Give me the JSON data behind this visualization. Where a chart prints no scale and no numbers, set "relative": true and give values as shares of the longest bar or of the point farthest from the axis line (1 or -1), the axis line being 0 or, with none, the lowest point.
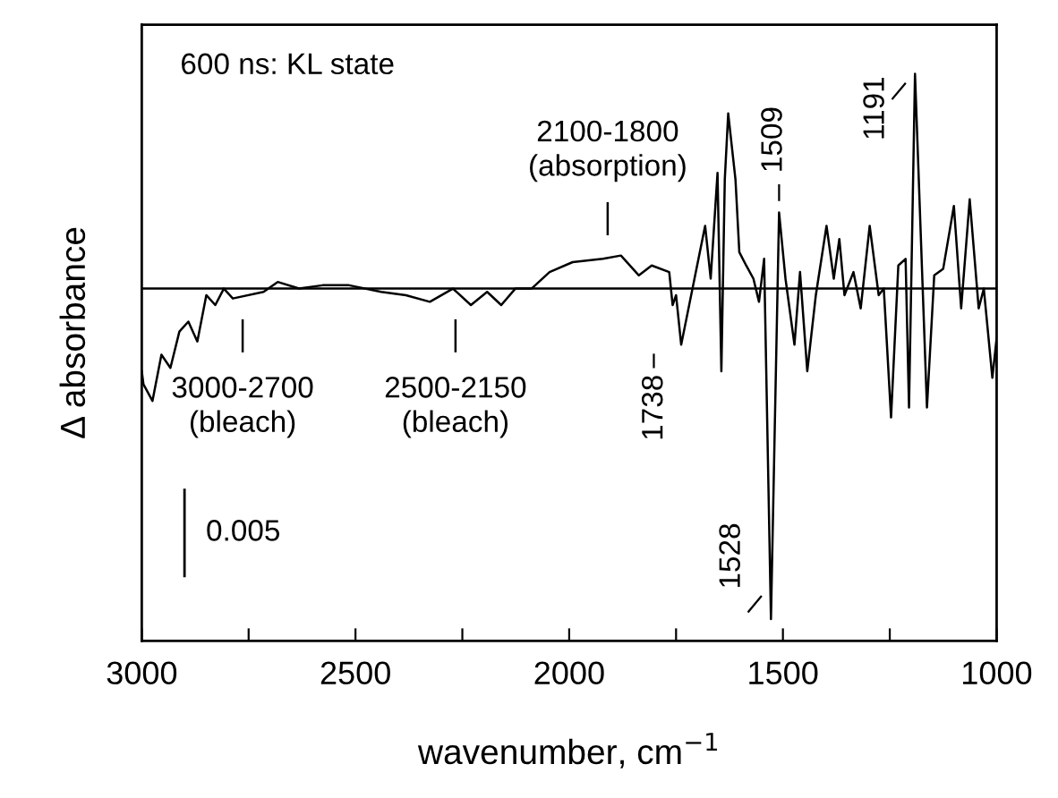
{
  "chart_data": {
    "type": "line",
    "relative": true,
    "xlabel": "wavenumber, cm$^{−1}$",
    "ylabel": "Δ absorbance",
    "xlim": [
      3000,
      1000
    ],
    "xticks": [
      3000,
      {
        "value": 2750,
        "label": null
      },
      2500,
      {
        "value": 2250,
        "label": null
      },
      2000,
      {
        "value": 1750,
        "label": null
      },
      1500,
      {
        "value": 1250,
        "label": null
      },
      1000
    ],
    "ref_lines": [
      {
        "axis": "y",
        "value": 0,
        "color": "#000000"
      }
    ],
    "series": [
      {
        "color": "#000000",
        "x": [
          3000,
          2996,
          2975,
          2954,
          2933,
          2912,
          2891,
          2870,
          2849,
          2828,
          2808,
          2787,
          2715,
          2682,
          2632,
          2577,
          2515,
          2440,
          2382,
          2326,
          2272,
          2230,
          2192,
          2159,
          2126,
          2088,
          2046,
          1992,
          1921,
          1879,
          1837,
          1807,
          1766,
          1758,
          1750,
          1738,
          1682,
          1669,
          1653,
          1644,
          1636,
          1628,
          1611,
          1602,
          1586,
          1569,
          1556,
          1544,
          1528,
          1509,
          1494,
          1473,
          1460,
          1443,
          1423,
          1398,
          1381,
          1368,
          1356,
          1335,
          1318,
          1297,
          1276,
          1264,
          1247,
          1230,
          1213,
          1205,
          1191,
          1163,
          1146,
          1125,
          1100,
          1083,
          1063,
          1042,
          1030,
          1010,
          1000
        ],
        "values": [
          -0.25,
          -0.29,
          -0.34,
          -0.2,
          -0.24,
          -0.13,
          -0.1,
          -0.16,
          -0.02,
          -0.05,
          0.0,
          -0.03,
          -0.01,
          0.02,
          0.0,
          0.01,
          0.01,
          -0.01,
          -0.02,
          -0.04,
          0.0,
          -0.05,
          -0.01,
          -0.05,
          0.0,
          0.0,
          0.05,
          0.08,
          0.09,
          0.1,
          0.04,
          0.07,
          0.05,
          -0.05,
          -0.02,
          -0.17,
          0.19,
          0.03,
          0.35,
          -0.25,
          0.33,
          0.53,
          0.33,
          0.11,
          0.07,
          0.03,
          -0.04,
          0.09,
          -1,
          0.23,
          0.03,
          -0.17,
          0.05,
          -0.25,
          -0.02,
          0.19,
          0.03,
          0.15,
          -0.02,
          0.05,
          -0.06,
          0.19,
          -0.02,
          0.0,
          -0.39,
          0.07,
          0.09,
          -0.36,
          0.65,
          -0.36,
          0.04,
          0.06,
          0.25,
          -0.06,
          0.27,
          -0.06,
          0.0,
          -0.27,
          -0.15
        ]
      }
    ],
    "annotations": [
      "600 ns: KL state",
      "0.005",
      "2100-1800\n(absorption)",
      "3000-2700\n(bleach)",
      "2500-2150\n(bleach)",
      {
        "text": "1738",
        "x": 1738,
        "y": -0.17
      },
      {
        "text": "1528",
        "x": 1528,
        "y": -1
      },
      {
        "text": "1509",
        "x": 1509,
        "y": 0.23
      },
      {
        "text": "1191",
        "x": 1191,
        "y": 0.65
      }
    ]
  }
}
